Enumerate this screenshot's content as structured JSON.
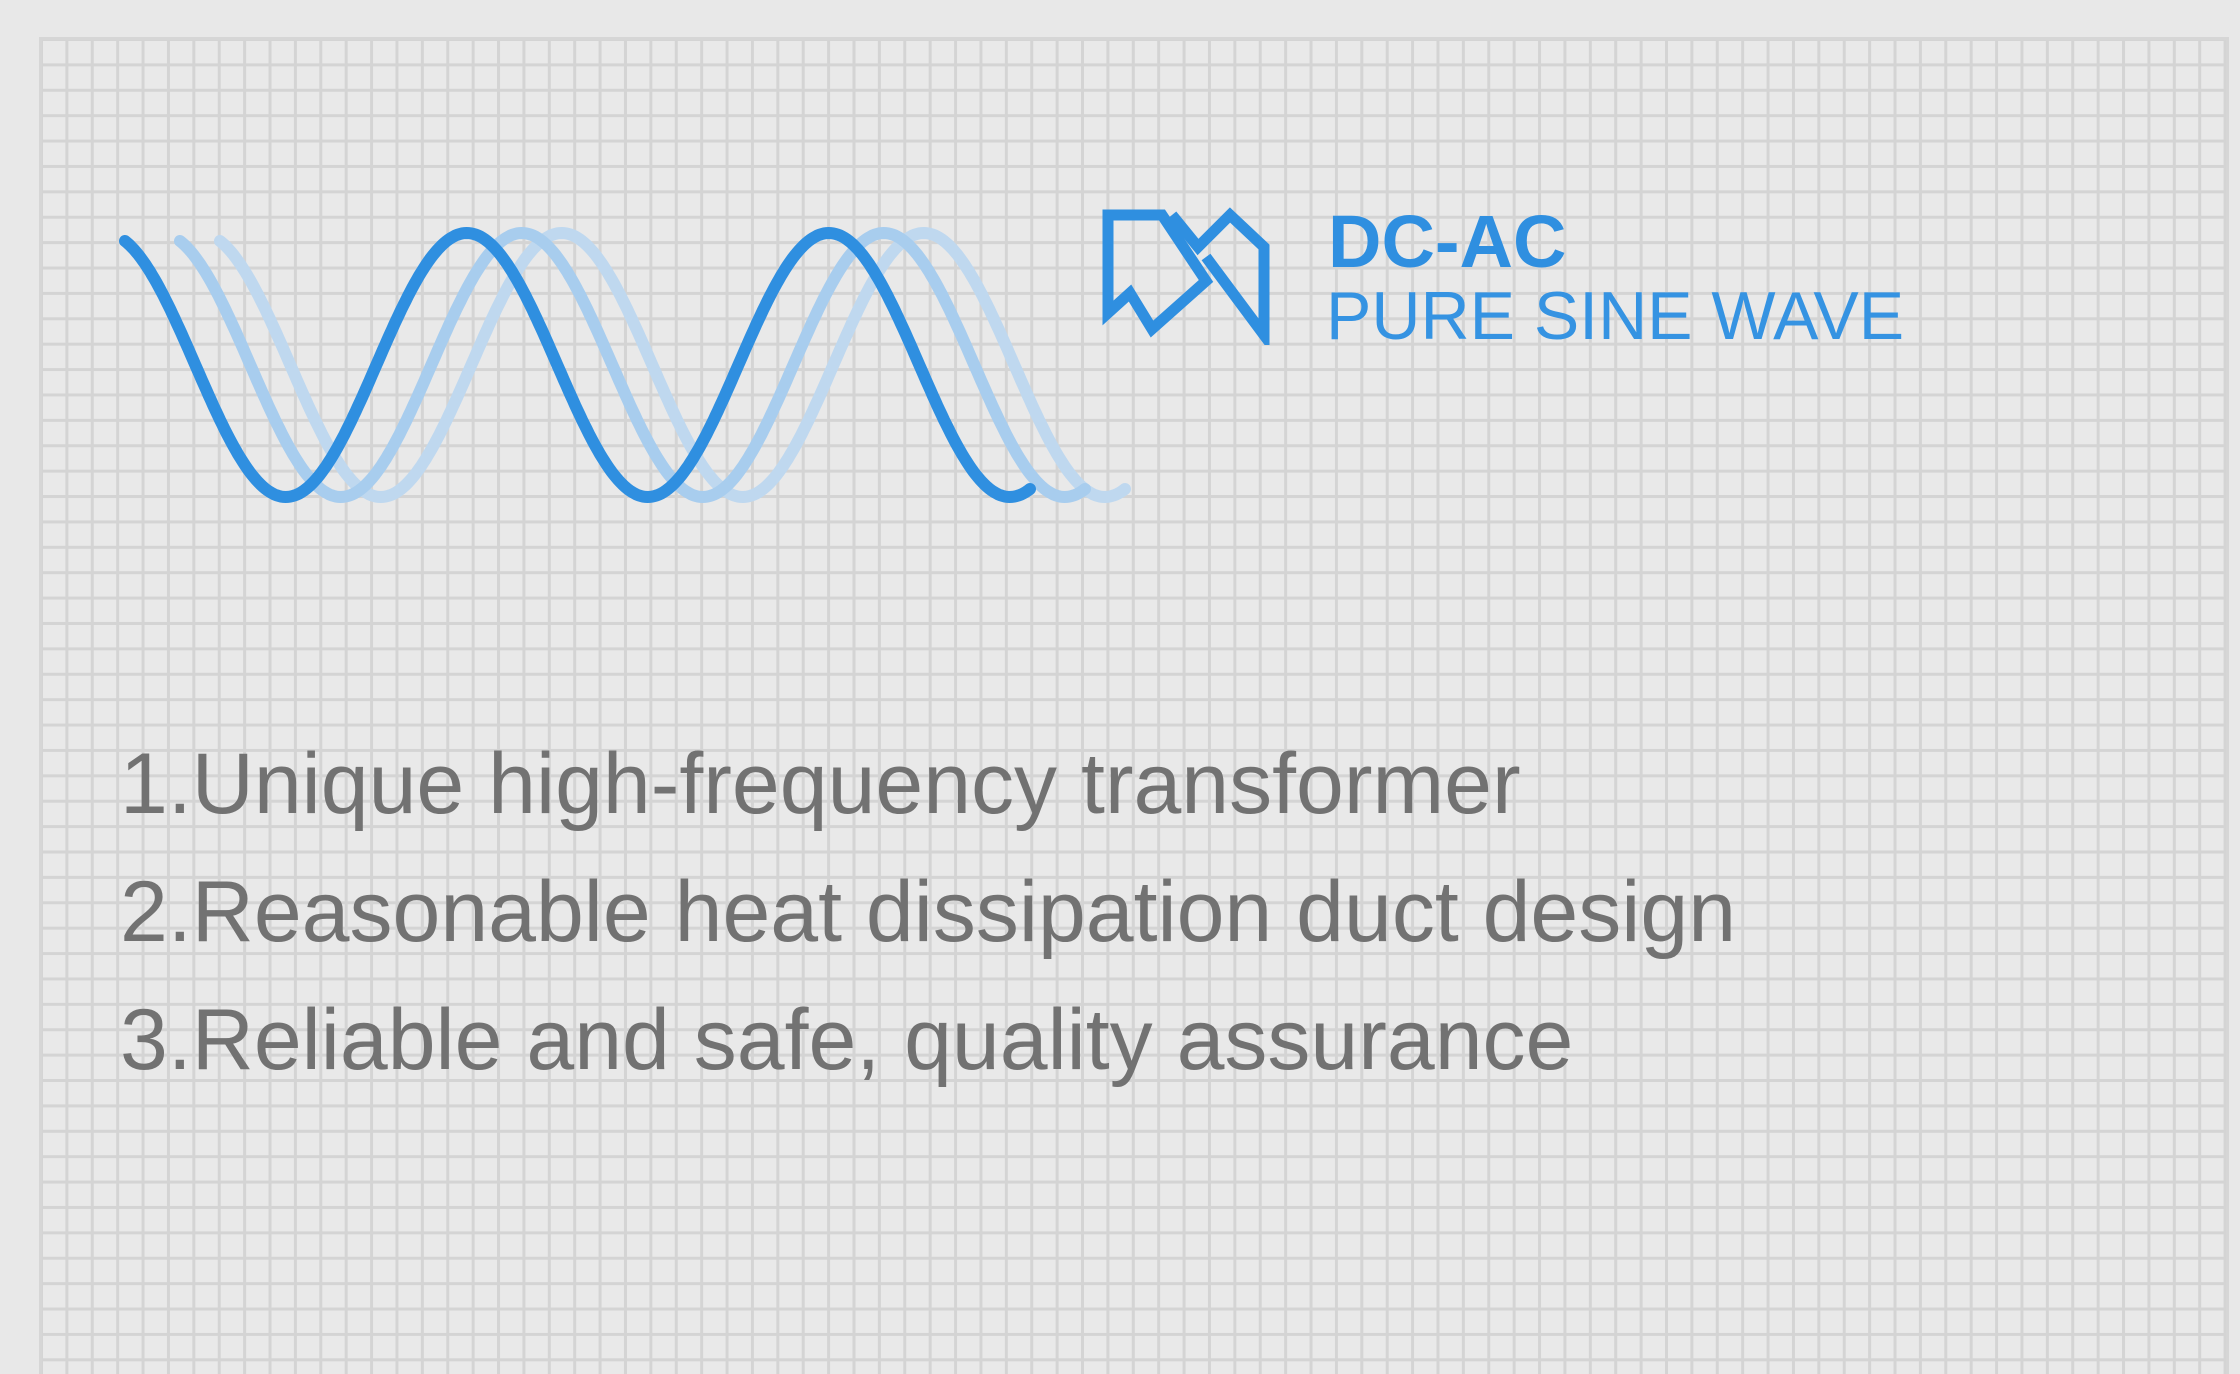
{
  "brand": {
    "title": "DC-AC",
    "subtitle": "PURE SINE WAVE",
    "logo_icon": "wave-logo-icon",
    "accent_color": "#2f8fe0"
  },
  "graphic": {
    "icon": "sine-wave-icon"
  },
  "features": [
    {
      "label": "1.Unique high-frequency transformer"
    },
    {
      "label": "2.Reasonable heat dissipation duct design"
    },
    {
      "label": "3.Reliable and safe, quality assurance"
    }
  ],
  "colors": {
    "background": "#e8e8e8",
    "grid_line": "#d4d4d4",
    "text": "#727272"
  }
}
